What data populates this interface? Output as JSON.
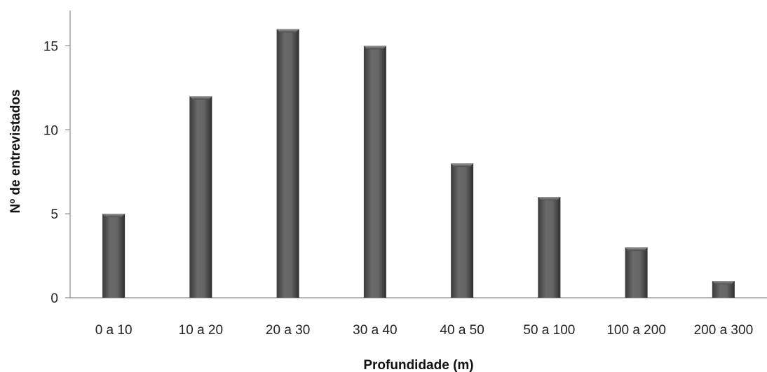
{
  "chart_data": {
    "type": "bar",
    "categories": [
      "0 a 10",
      "10 a 20",
      "20 a 30",
      "30 a 40",
      "40 a 50",
      "50 a 100",
      "100 a 200",
      "200 a 300"
    ],
    "values": [
      5,
      12,
      16,
      15,
      8,
      6,
      3,
      1
    ],
    "xlabel": "Profundidade (m)",
    "ylabel": "Nº de entrevistados",
    "ylim": [
      0,
      16
    ],
    "yticks": [
      0,
      5,
      10,
      15
    ],
    "grid": false,
    "legend": "none",
    "bar_color": "#5a5a5a"
  }
}
